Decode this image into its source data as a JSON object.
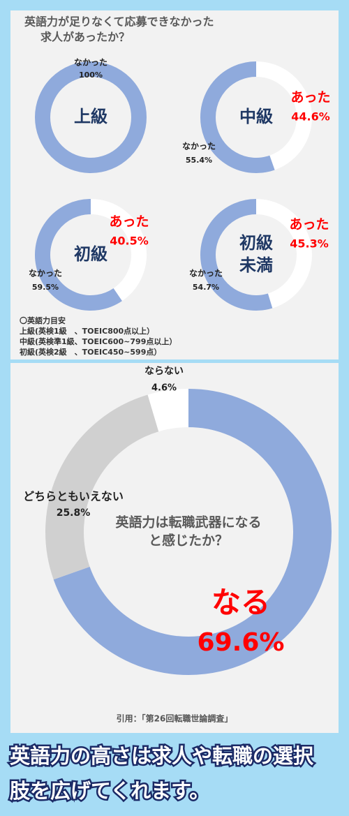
{
  "section_title": [
    "英語力が足りなくて応募できなかった",
    "求人があったか？"
  ],
  "chart_data": [
    {
      "type": "pie",
      "donut": true,
      "center": [
        "上級"
      ],
      "categories": [
        "なかった"
      ],
      "values": [
        100
      ],
      "value_labels": [
        "100%"
      ],
      "colors": [
        "#8faadc"
      ],
      "label_colors": [
        "#222222"
      ]
    },
    {
      "type": "pie",
      "donut": true,
      "center": [
        "中級"
      ],
      "categories": [
        "あった",
        "なかった"
      ],
      "values": [
        44.6,
        55.4
      ],
      "value_labels": [
        "44.6%",
        "55.4%"
      ],
      "colors": [
        "#ffffff",
        "#8faadc"
      ],
      "label_colors": [
        "#ff0000",
        "#222222"
      ]
    },
    {
      "type": "pie",
      "donut": true,
      "center": [
        "初級"
      ],
      "categories": [
        "あった",
        "なかった"
      ],
      "values": [
        40.5,
        59.5
      ],
      "value_labels": [
        "40.5%",
        "59.5%"
      ],
      "colors": [
        "#ffffff",
        "#8faadc"
      ],
      "label_colors": [
        "#ff0000",
        "#222222"
      ]
    },
    {
      "type": "pie",
      "donut": true,
      "center": [
        "初級",
        "未満"
      ],
      "categories": [
        "あった",
        "なかった"
      ],
      "values": [
        45.3,
        54.7
      ],
      "value_labels": [
        "45.3%",
        "54.7%"
      ],
      "colors": [
        "#ffffff",
        "#8faadc"
      ],
      "label_colors": [
        "#ff0000",
        "#222222"
      ]
    },
    {
      "type": "pie",
      "donut": true,
      "center": [
        "英語力は転職武器になる",
        "と感じたか？"
      ],
      "categories": [
        "なる",
        "どちらともいえない",
        "ならない"
      ],
      "values": [
        69.6,
        25.8,
        4.6
      ],
      "value_labels": [
        "69.6%",
        "25.8%",
        "4.6%"
      ],
      "colors": [
        "#8faadc",
        "#d0d0d0",
        "#ffffff"
      ],
      "label_colors": [
        "#ff0000",
        "#222222",
        "#222222"
      ]
    }
  ],
  "notes": [
    "〇英語力目安",
    "上級(英検1級　、TOEIC800点以上）",
    "中級(英検準1級、TOEIC600~799点以上）",
    "初級(英検2級　、TOEIC450~599点）"
  ],
  "source": "引用：「第26回転職世論調査」",
  "caption": [
    "英語力の高さは求人や転職の選択",
    "肢を広げてくれます。"
  ]
}
